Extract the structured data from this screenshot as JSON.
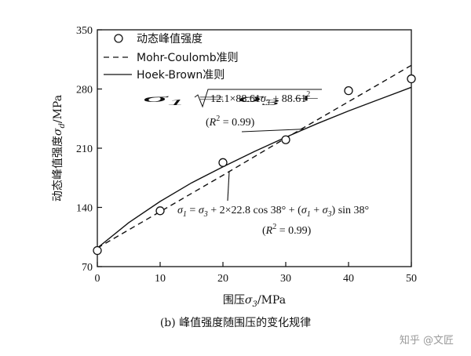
{
  "chart_data": {
    "type": "scatter",
    "caption": "(b)  峰值强度随围压的变化规律",
    "xlabel": "围压σ3/MPa",
    "ylabel": "动态峰值强度σd/MPa",
    "xlim": [
      0,
      50
    ],
    "ylim": [
      70,
      350
    ],
    "xticks": [
      0,
      10,
      20,
      30,
      40,
      50
    ],
    "yticks": [
      70,
      140,
      210,
      280,
      350
    ],
    "grid": false,
    "legend_position": "top-left",
    "legend": [
      {
        "label": "动态峰值强度",
        "style": "marker-circle"
      },
      {
        "label": "Mohr-Coulomb准则",
        "style": "dashed"
      },
      {
        "label": "Hoek-Brown准则",
        "style": "solid"
      }
    ],
    "series": [
      {
        "name": "动态峰值强度",
        "kind": "points",
        "x": [
          0,
          10,
          20,
          30,
          40,
          50
        ],
        "y": [
          89,
          136,
          193,
          220,
          278,
          292
        ]
      },
      {
        "name": "Mohr-Coulomb准则",
        "kind": "line",
        "x": [
          0,
          10,
          20,
          30,
          40,
          50
        ],
        "y": [
          92,
          135,
          178,
          222,
          265,
          308
        ]
      },
      {
        "name": "Hoek-Brown准则",
        "kind": "line",
        "x": [
          0,
          5,
          10,
          15,
          20,
          25,
          30,
          35,
          40,
          45,
          50
        ],
        "y": [
          92,
          122,
          147,
          169,
          188,
          206,
          223,
          239,
          254,
          268,
          282
        ]
      }
    ],
    "annotations": [
      {
        "id": "hb_eq",
        "text": "σ1 = σ3 + √(12.1×88.61σ3 + 88.61²)",
        "r2": "(R² = 0.99)",
        "points_to": "Hoek-Brown准则",
        "at_x": 33
      },
      {
        "id": "mc_eq",
        "text": "σ1 = σ3 + 2×22.8cos38° + (σ1 + σ3)sin38°",
        "r2": "(R² = 0.99)",
        "points_to": "Mohr-Coulomb准则",
        "at_x": 21
      }
    ]
  },
  "watermark": "知乎 @文匠"
}
